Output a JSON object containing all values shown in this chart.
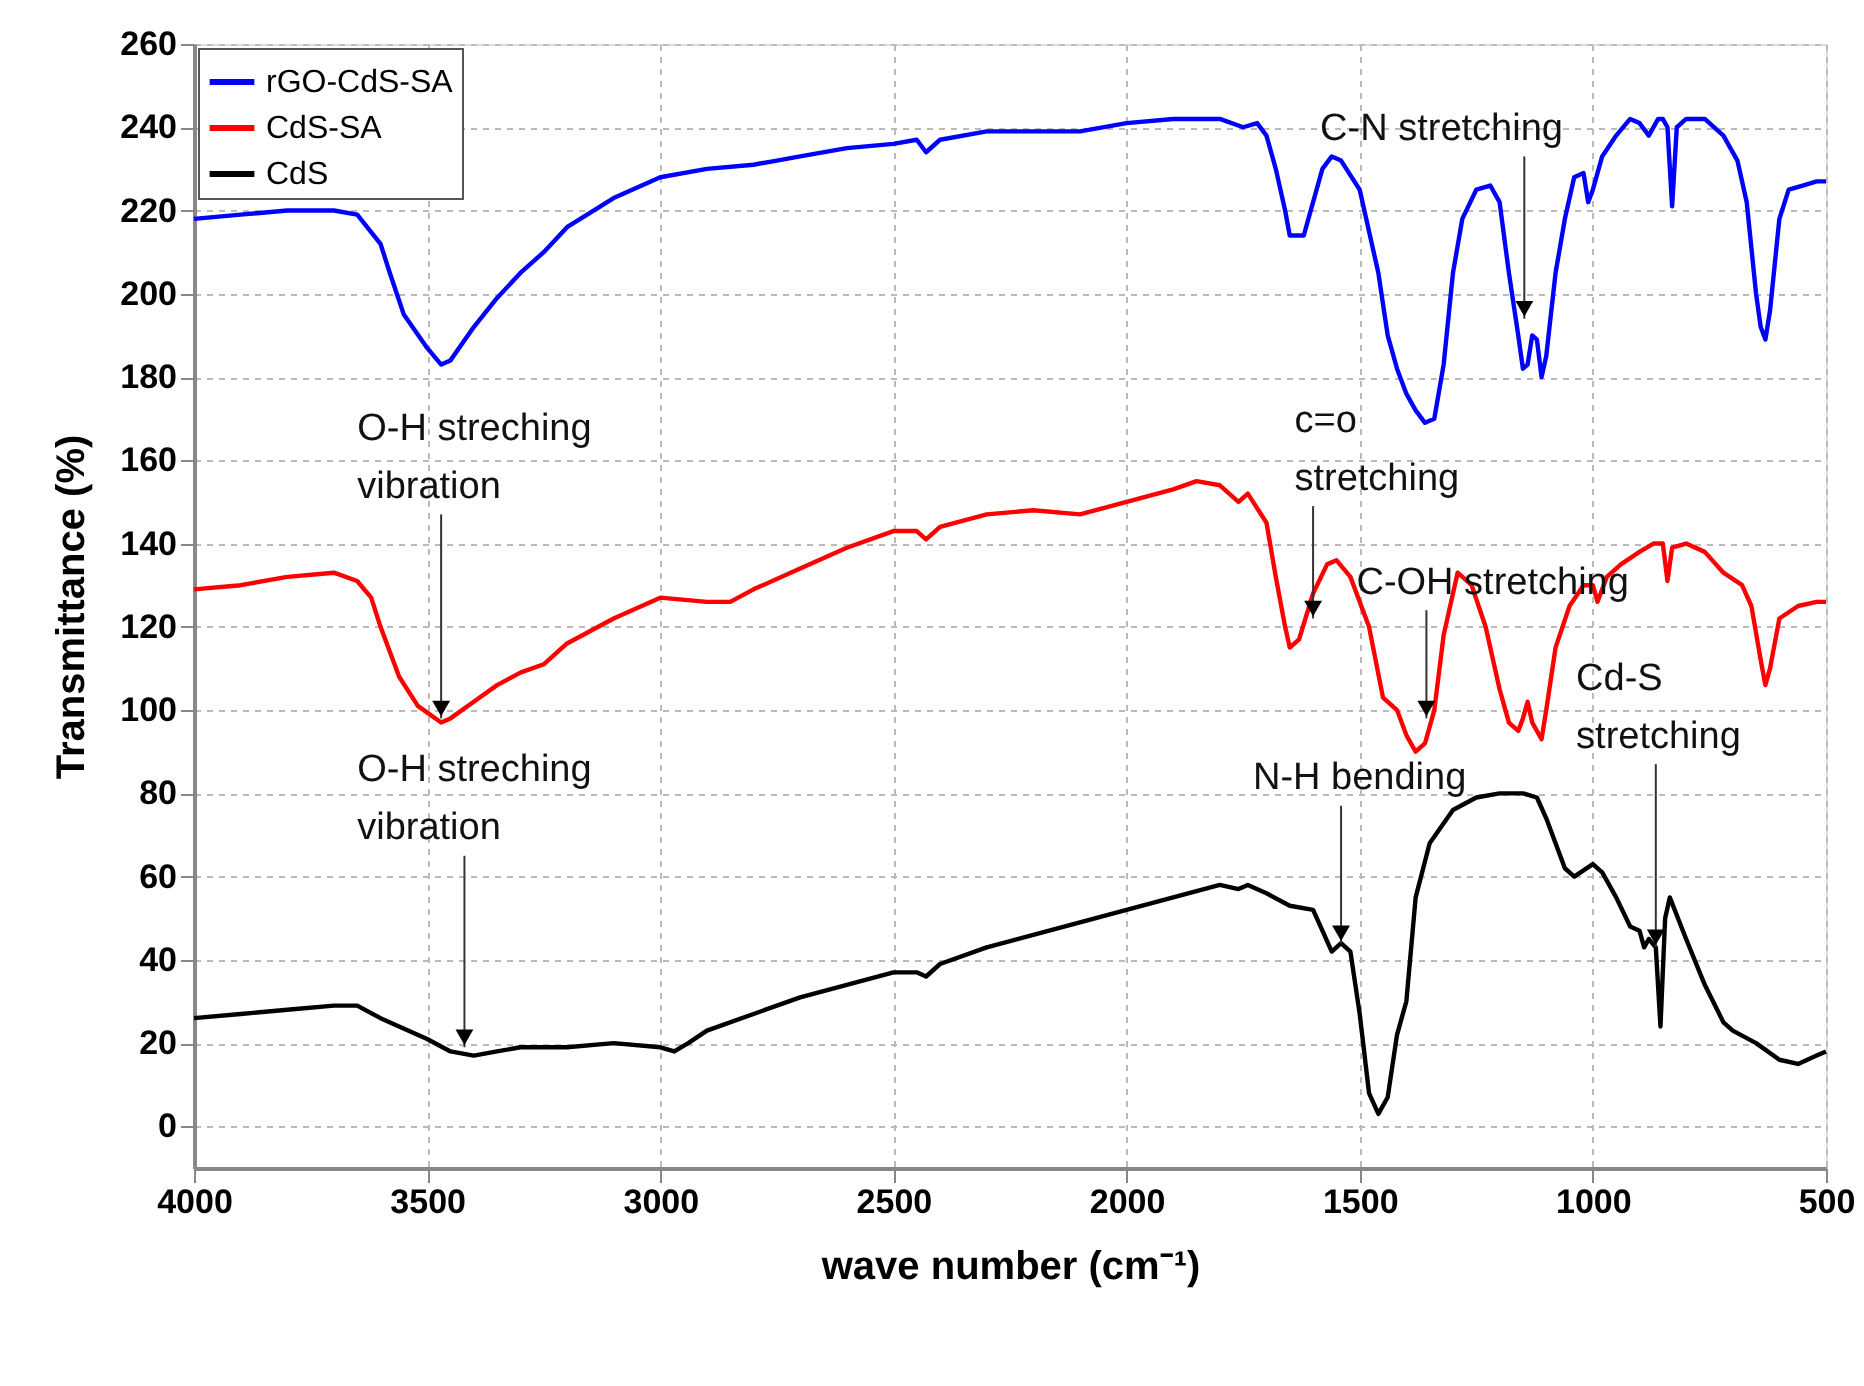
{
  "chart_data": {
    "type": "line",
    "xlabel": "wave number (cm⁻¹)",
    "ylabel": "Transmittance (%)",
    "xlim": [
      4000,
      500
    ],
    "xticks": [
      4000,
      3500,
      3000,
      2500,
      2000,
      1500,
      1000,
      500
    ],
    "ylim": [
      -10,
      260
    ],
    "yticks": [
      0,
      20,
      40,
      60,
      80,
      100,
      120,
      140,
      160,
      180,
      200,
      220,
      240,
      260
    ],
    "grid": true,
    "legend": "top left",
    "line_style": "solid",
    "x": [
      4000,
      3900,
      3800,
      3700,
      3650,
      3600,
      3580,
      3550,
      3500,
      3470,
      3450,
      3400,
      3350,
      3300,
      3250,
      3200,
      3100,
      3000,
      2900,
      2800,
      2750,
      2700,
      2600,
      2500,
      2450,
      2430,
      2400,
      2300,
      2200,
      2100,
      2000,
      1900,
      1800,
      1750,
      1720,
      1700,
      1680,
      1660,
      1650,
      1620,
      1600,
      1580,
      1560,
      1540,
      1500,
      1460,
      1440,
      1420,
      1400,
      1380,
      1360,
      1340,
      1320,
      1300,
      1280,
      1250,
      1220,
      1200,
      1180,
      1160,
      1150,
      1140,
      1130,
      1120,
      1110,
      1100,
      1080,
      1060,
      1040,
      1020,
      1010,
      1000,
      980,
      950,
      920,
      900,
      880,
      860,
      850,
      840,
      830,
      820,
      800,
      760,
      720,
      690,
      670,
      650,
      640,
      630,
      620,
      600,
      580,
      550,
      520,
      500
    ],
    "series": [
      {
        "name": "rGO-CdS-SA",
        "color": "#0000ff",
        "values": [
          218,
          219,
          220,
          220,
          219,
          212,
          205,
          195,
          187,
          183,
          184,
          192,
          199,
          205,
          210,
          216,
          223,
          228,
          230,
          231,
          232,
          233,
          235,
          236,
          237,
          234,
          237,
          239,
          239,
          239,
          241,
          242,
          242,
          240,
          241,
          238,
          230,
          220,
          214,
          214,
          222,
          230,
          233,
          232,
          225,
          205,
          190,
          182,
          176,
          172,
          169,
          170,
          183,
          205,
          218,
          225,
          226,
          222,
          205,
          190,
          182,
          183,
          190,
          189,
          180,
          185,
          205,
          218,
          228,
          229,
          222,
          225,
          233,
          238,
          242,
          241,
          238,
          242,
          242,
          240,
          221,
          240,
          242,
          242,
          238,
          232,
          222,
          200,
          192,
          189,
          196,
          218,
          225,
          226,
          227,
          227
        ]
      },
      {
        "name": "CdS-SA",
        "color": "#ff0000",
        "x": [
          4000,
          3900,
          3800,
          3700,
          3650,
          3620,
          3600,
          3560,
          3520,
          3470,
          3450,
          3400,
          3350,
          3300,
          3250,
          3200,
          3100,
          3000,
          2900,
          2850,
          2800,
          2700,
          2600,
          2500,
          2450,
          2430,
          2400,
          2300,
          2200,
          2100,
          2000,
          1900,
          1850,
          1800,
          1760,
          1740,
          1700,
          1680,
          1660,
          1650,
          1630,
          1600,
          1570,
          1550,
          1520,
          1480,
          1450,
          1420,
          1400,
          1380,
          1360,
          1340,
          1320,
          1290,
          1260,
          1230,
          1200,
          1180,
          1160,
          1150,
          1140,
          1130,
          1110,
          1100,
          1080,
          1050,
          1020,
          1000,
          990,
          970,
          940,
          900,
          870,
          850,
          840,
          830,
          800,
          760,
          720,
          680,
          660,
          640,
          630,
          620,
          600,
          560,
          520,
          500
        ],
        "values": [
          129,
          130,
          132,
          133,
          131,
          127,
          120,
          108,
          101,
          97,
          98,
          102,
          106,
          109,
          111,
          116,
          122,
          127,
          126,
          126,
          129,
          134,
          139,
          143,
          143,
          141,
          144,
          147,
          148,
          147,
          150,
          153,
          155,
          154,
          150,
          152,
          145,
          132,
          120,
          115,
          117,
          128,
          135,
          136,
          132,
          120,
          103,
          100,
          94,
          90,
          92,
          100,
          118,
          133,
          130,
          120,
          105,
          97,
          95,
          98,
          102,
          97,
          93,
          100,
          115,
          125,
          130,
          130,
          126,
          132,
          135,
          138,
          140,
          140,
          131,
          139,
          140,
          138,
          133,
          130,
          125,
          112,
          106,
          110,
          122,
          125,
          126,
          126
        ]
      },
      {
        "name": "CdS",
        "color": "#000000",
        "x": [
          4000,
          3900,
          3800,
          3700,
          3650,
          3600,
          3500,
          3450,
          3400,
          3350,
          3300,
          3200,
          3100,
          3000,
          2970,
          2940,
          2900,
          2800,
          2700,
          2600,
          2500,
          2450,
          2430,
          2400,
          2300,
          2200,
          2100,
          2000,
          1900,
          1800,
          1760,
          1740,
          1700,
          1650,
          1600,
          1580,
          1560,
          1540,
          1520,
          1500,
          1480,
          1460,
          1440,
          1420,
          1410,
          1400,
          1380,
          1350,
          1300,
          1250,
          1200,
          1150,
          1120,
          1100,
          1060,
          1040,
          1000,
          980,
          950,
          920,
          900,
          890,
          880,
          865,
          855,
          845,
          835,
          800,
          760,
          720,
          700,
          650,
          600,
          560,
          520,
          500
        ],
        "values": [
          26,
          27,
          28,
          29,
          29,
          26,
          21,
          18,
          17,
          18,
          19,
          19,
          20,
          19,
          18,
          20,
          23,
          27,
          31,
          34,
          37,
          37,
          36,
          39,
          43,
          46,
          49,
          52,
          55,
          58,
          57,
          58,
          56,
          53,
          52,
          47,
          42,
          44,
          42,
          27,
          8,
          3,
          7,
          22,
          26,
          30,
          55,
          68,
          76,
          79,
          80,
          80,
          79,
          74,
          62,
          60,
          63,
          61,
          55,
          48,
          47,
          43,
          45,
          43,
          24,
          50,
          55,
          45,
          34,
          25,
          23,
          20,
          16,
          15,
          17,
          18
        ]
      }
    ],
    "annotations": [
      {
        "text": "O-H streching\nvibration",
        "x": 3470,
        "y": 98
      },
      {
        "text": "O-H streching\nvibration",
        "x": 3420,
        "y": 19
      },
      {
        "text": "c=o\nstretching",
        "x": 1600,
        "y": 122
      },
      {
        "text": "C-N stretching",
        "x": 1147,
        "y": 194
      },
      {
        "text": "C-OH stretching",
        "x": 1357,
        "y": 98
      },
      {
        "text": "N-H bending",
        "x": 1540,
        "y": 44
      },
      {
        "text": "Cd-S\nstretching",
        "x": 865,
        "y": 43
      }
    ]
  }
}
